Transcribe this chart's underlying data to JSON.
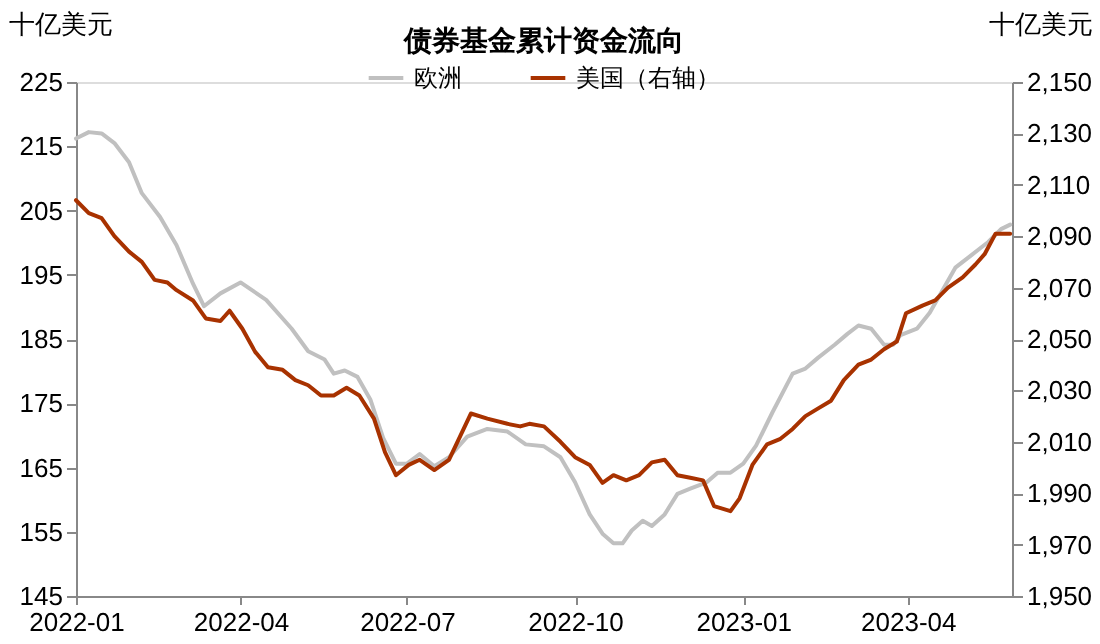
{
  "chart_data": {
    "type": "line",
    "title": "债券基金累计资金流向",
    "ylabel": "十亿美元",
    "y2label": "十亿美元",
    "xlim": [
      "2022-01-01",
      "2023-05-28"
    ],
    "xticks": [
      "2022-01",
      "2022-04",
      "2022-07",
      "2022-10",
      "2023-01",
      "2023-04"
    ],
    "ylim": [
      145,
      225
    ],
    "yticks": [
      145,
      155,
      165,
      175,
      185,
      195,
      205,
      215,
      225
    ],
    "y2lim": [
      1950,
      2150
    ],
    "y2ticks": [
      {
        "value": 1950,
        "label": "1,950"
      },
      {
        "value": 1970,
        "label": "1,970"
      },
      {
        "value": 1990,
        "label": "1,990"
      },
      {
        "value": 2010,
        "label": "2,010"
      },
      {
        "value": 2030,
        "label": "2,030"
      },
      {
        "value": 2050,
        "label": "2,050"
      },
      {
        "value": 2070,
        "label": "2,070"
      },
      {
        "value": 2090,
        "label": "2,090"
      },
      {
        "value": 2110,
        "label": "2,110"
      },
      {
        "value": 2130,
        "label": "2,130"
      },
      {
        "value": 2150,
        "label": "2,150"
      }
    ],
    "grid": false,
    "legend": "top",
    "marker": "none",
    "line_style": "solid",
    "series": [
      {
        "name": "欧洲",
        "color": "#c0c0c0",
        "x": [
          "2022-01-01",
          "2022-01-08",
          "2022-01-15",
          "2022-01-22",
          "2022-01-30",
          "2022-02-06",
          "2022-02-16",
          "2022-02-25",
          "2022-03-06",
          "2022-03-12",
          "2022-03-21",
          "2022-04-01",
          "2022-04-15",
          "2022-04-29",
          "2022-05-08",
          "2022-05-17",
          "2022-05-22",
          "2022-05-28",
          "2022-06-04",
          "2022-06-11",
          "2022-06-18",
          "2022-06-25",
          "2022-07-01",
          "2022-07-08",
          "2022-07-16",
          "2022-07-24",
          "2022-08-03",
          "2022-08-14",
          "2022-08-25",
          "2022-09-04",
          "2022-09-14",
          "2022-09-23",
          "2022-10-01",
          "2022-10-09",
          "2022-10-16",
          "2022-10-22",
          "2022-10-27",
          "2022-11-01",
          "2022-11-07",
          "2022-11-12",
          "2022-11-19",
          "2022-11-26",
          "2022-12-03",
          "2022-12-12",
          "2022-12-18",
          "2022-12-25",
          "2023-01-01",
          "2023-01-08",
          "2023-01-17",
          "2023-01-28",
          "2023-02-04",
          "2023-02-11",
          "2023-02-20",
          "2023-02-27",
          "2023-03-05",
          "2023-03-12",
          "2023-03-19",
          "2023-03-24",
          "2023-03-28",
          "2023-04-06",
          "2023-04-13",
          "2023-04-20",
          "2023-04-27",
          "2023-05-06",
          "2023-05-15",
          "2023-05-22",
          "2023-05-27"
        ],
        "values": [
          216.2,
          217.2,
          217,
          215.5,
          212.5,
          207.7,
          204,
          199.6,
          193.6,
          190.1,
          192.1,
          193.8,
          191.1,
          186.6,
          183.1,
          181.8,
          179.6,
          180.1,
          179.1,
          175.6,
          169.6,
          165.6,
          165.6,
          167.1,
          165.2,
          166.6,
          169.8,
          171,
          170.6,
          168.6,
          168.3,
          166.6,
          162.7,
          157.7,
          154.7,
          153.2,
          153.2,
          155.2,
          156.7,
          155.9,
          157.7,
          160.9,
          161.7,
          162.7,
          164.2,
          164.2,
          165.6,
          168.4,
          173.6,
          179.6,
          180.4,
          182.1,
          184.1,
          185.8,
          187.1,
          186.6,
          184.1,
          184.1,
          185.6,
          186.6,
          189.1,
          192.6,
          196.1,
          198.1,
          200.1,
          202.1,
          202.8
        ]
      },
      {
        "name": "美国（右轴）",
        "color": "#a83200",
        "axis": "y2",
        "x": [
          "2022-01-01",
          "2022-01-08",
          "2022-01-15",
          "2022-01-22",
          "2022-01-30",
          "2022-02-06",
          "2022-02-13",
          "2022-02-20",
          "2022-02-25",
          "2022-03-06",
          "2022-03-13",
          "2022-03-21",
          "2022-03-26",
          "2022-04-02",
          "2022-04-09",
          "2022-04-16",
          "2022-04-24",
          "2022-05-01",
          "2022-05-08",
          "2022-05-15",
          "2022-05-22",
          "2022-05-29",
          "2022-06-05",
          "2022-06-13",
          "2022-06-19",
          "2022-06-25",
          "2022-07-02",
          "2022-07-08",
          "2022-07-16",
          "2022-07-24",
          "2022-08-05",
          "2022-08-14",
          "2022-08-25",
          "2022-09-01",
          "2022-09-06",
          "2022-09-14",
          "2022-09-23",
          "2022-10-01",
          "2022-10-09",
          "2022-10-16",
          "2022-10-22",
          "2022-10-29",
          "2022-11-05",
          "2022-11-12",
          "2022-11-19",
          "2022-11-26",
          "2022-12-03",
          "2022-12-10",
          "2022-12-16",
          "2022-12-25",
          "2022-12-30",
          "2023-01-06",
          "2023-01-14",
          "2023-01-21",
          "2023-01-28",
          "2023-02-04",
          "2023-02-11",
          "2023-02-18",
          "2023-02-25",
          "2023-03-05",
          "2023-03-12",
          "2023-03-19",
          "2023-03-26",
          "2023-03-31",
          "2023-04-09",
          "2023-04-16",
          "2023-04-23",
          "2023-05-01",
          "2023-05-08",
          "2023-05-13",
          "2023-05-19",
          "2023-05-27"
        ],
        "values": [
          2104,
          2099,
          2097,
          2090,
          2084,
          2080,
          2073,
          2072,
          2069,
          2065,
          2058,
          2057,
          2061,
          2054,
          2045,
          2039,
          2038,
          2034,
          2032,
          2028,
          2028,
          2031,
          2028,
          2019,
          2006,
          1997,
          2001,
          2003,
          1999,
          2003,
          2021,
          2019,
          2017,
          2016,
          2017,
          2016,
          2010,
          2004,
          2001,
          1994,
          1997,
          1995,
          1997,
          2002,
          2003,
          1997,
          1996,
          1995,
          1985,
          1983,
          1988,
          2001,
          2009,
          2011,
          2015,
          2020,
          2023,
          2026,
          2034,
          2040,
          2042,
          2046,
          2049,
          2060,
          2063,
          2065,
          2070,
          2074,
          2079,
          2083,
          2091,
          2091
        ]
      }
    ]
  }
}
